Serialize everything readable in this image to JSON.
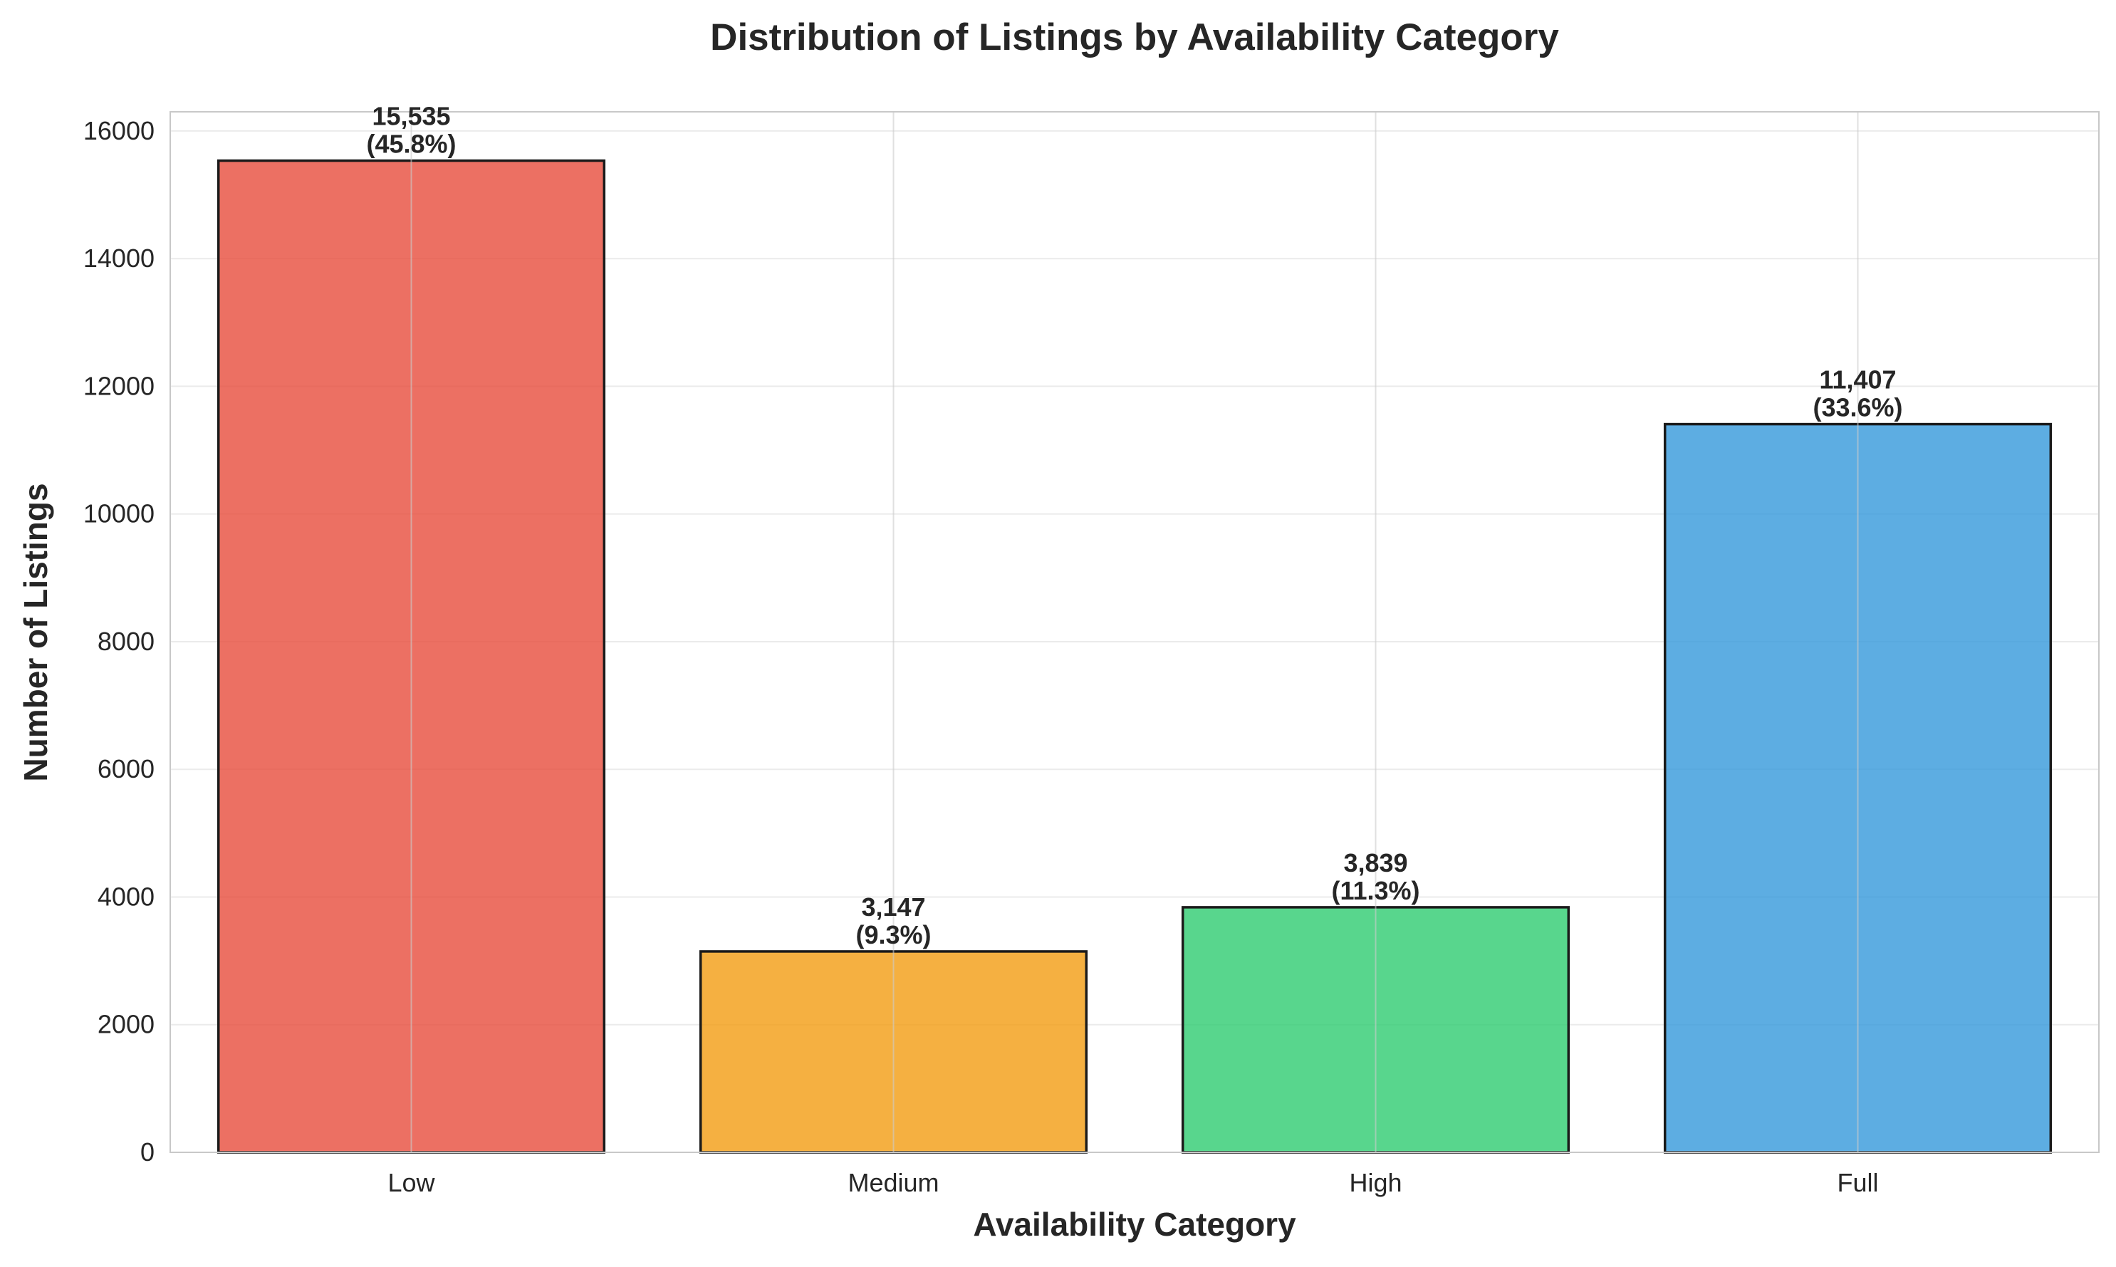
{
  "chart_data": {
    "type": "bar",
    "title": "Distribution of Listings by Availability Category",
    "xlabel": "Availability Category",
    "ylabel": "Number of Listings",
    "categories": [
      "Low",
      "Medium",
      "High",
      "Full"
    ],
    "values": [
      15535,
      3147,
      3839,
      11407
    ],
    "value_labels": [
      "15,535",
      "3,147",
      "3,839",
      "11,407"
    ],
    "percent_labels": [
      "(45.8%)",
      "(9.3%)",
      "(11.3%)",
      "(33.6%)"
    ],
    "colors": [
      "#e74c3c",
      "#f39c12",
      "#2ecc71",
      "#3498db"
    ],
    "edge_color": "#1a1a1a",
    "ylim": [
      0,
      16300
    ],
    "yticks": [
      0,
      2000,
      4000,
      6000,
      8000,
      10000,
      12000,
      14000,
      16000
    ],
    "ytick_labels": [
      "0",
      "2000",
      "4000",
      "6000",
      "8000",
      "10000",
      "12000",
      "14000",
      "16000"
    ],
    "grid": true,
    "legend": "none"
  }
}
